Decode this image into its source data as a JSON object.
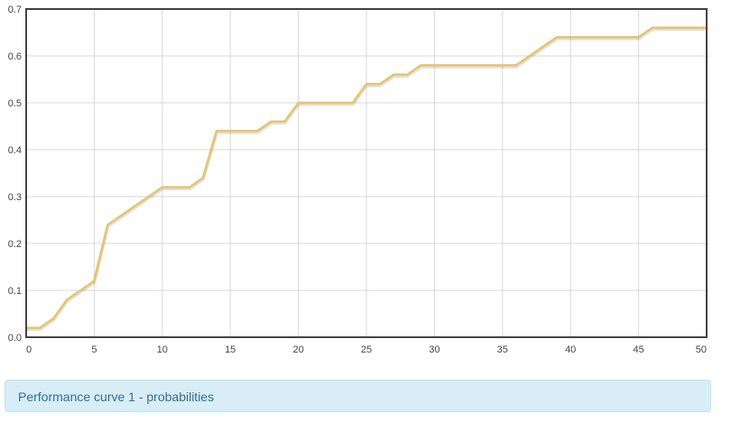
{
  "chart_data": {
    "type": "line",
    "x": [
      0,
      1,
      2,
      3,
      5,
      6,
      10,
      12,
      13,
      14,
      17,
      18,
      19,
      20,
      24,
      25,
      26,
      27,
      28,
      29,
      36,
      39,
      45,
      46,
      50
    ],
    "series": [
      {
        "values": [
          0.02,
          0.02,
          0.04,
          0.08,
          0.12,
          0.24,
          0.32,
          0.32,
          0.34,
          0.44,
          0.44,
          0.46,
          0.46,
          0.5,
          0.5,
          0.54,
          0.54,
          0.56,
          0.56,
          0.58,
          0.58,
          0.64,
          0.64,
          0.66,
          0.66
        ],
        "color": "#e8c46a"
      }
    ],
    "xlim": [
      0,
      50
    ],
    "ylim": [
      0,
      0.7
    ],
    "xticks": [
      "0",
      "5",
      "10",
      "15",
      "20",
      "25",
      "30",
      "35",
      "40",
      "45",
      "50"
    ],
    "yticks": [
      "0.0",
      "0.1",
      "0.2",
      "0.3",
      "0.4",
      "0.5",
      "0.6",
      "0.7"
    ],
    "grid": true,
    "title": "",
    "xlabel": "",
    "ylabel": ""
  },
  "caption": "Performance curve 1 - probabilities",
  "colors": {
    "line": "#e8c46a",
    "grid": "#d8d8d8",
    "frame": "#444444",
    "caption_bg": "#d9edf7",
    "caption_text": "#31708f"
  }
}
